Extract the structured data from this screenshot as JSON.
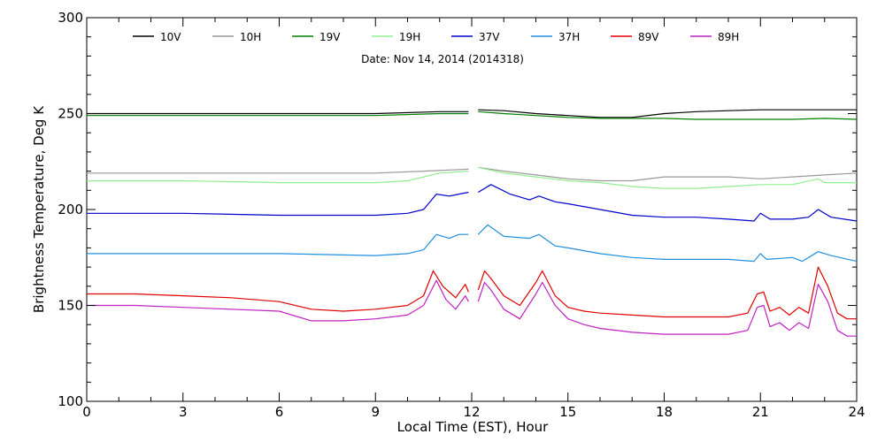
{
  "chart_data": {
    "type": "line",
    "subtitle": "Date: Nov 14, 2014 (2014318)",
    "xlabel": "Local Time (EST), Hour",
    "ylabel": "Brightness Temperature, Deg K",
    "xlim": [
      0,
      24
    ],
    "ylim": [
      100,
      300
    ],
    "xticks": [
      "0",
      "3",
      "6",
      "9",
      "12",
      "15",
      "18",
      "21",
      "24"
    ],
    "yticks": [
      "100",
      "150",
      "200",
      "250",
      "300"
    ],
    "grid": false,
    "legend_position": "top",
    "gap": [
      11.9,
      12.2
    ],
    "series": [
      {
        "name": "10V",
        "color": "#000000",
        "x": [
          0,
          3,
          6,
          9,
          11,
          11.9,
          12.2,
          13,
          14,
          15,
          16,
          17,
          18,
          19,
          20,
          21,
          22,
          23,
          24
        ],
        "y": [
          250,
          250,
          250,
          250,
          251,
          251,
          252,
          251.5,
          250,
          249,
          248,
          248,
          250,
          251,
          251.5,
          252,
          252,
          252,
          252
        ]
      },
      {
        "name": "10H",
        "color": "#999999",
        "x": [
          0,
          3,
          6,
          9,
          10.5,
          11.9,
          12.2,
          13,
          14,
          15,
          16,
          17,
          18,
          19,
          20,
          21,
          22,
          23,
          24
        ],
        "y": [
          219,
          219,
          219,
          219,
          220,
          221,
          222,
          220,
          218,
          216,
          215,
          215,
          217,
          217,
          217,
          216,
          217,
          218,
          219
        ]
      },
      {
        "name": "19V",
        "color": "#008000",
        "x": [
          0,
          3,
          6,
          9,
          11,
          11.9,
          12.2,
          13,
          14,
          15,
          16,
          17,
          18,
          19,
          20,
          21,
          22,
          23,
          24
        ],
        "y": [
          249,
          249,
          249,
          249,
          250,
          250,
          251,
          250,
          249,
          248,
          247.5,
          247.5,
          247.5,
          247,
          247,
          247,
          247,
          247.5,
          247
        ]
      },
      {
        "name": "19H",
        "color": "#90ee90",
        "x": [
          0,
          3,
          6,
          9,
          10,
          11,
          11.9,
          12.2,
          13,
          14,
          15,
          16,
          17,
          18,
          19,
          20,
          21,
          22,
          22.8,
          23,
          24
        ],
        "y": [
          215,
          215,
          214,
          214,
          215,
          219,
          220,
          222,
          219,
          217,
          215,
          214,
          212,
          211,
          211,
          212,
          213,
          213,
          216,
          214,
          214
        ]
      },
      {
        "name": "37V",
        "color": "#0000cc",
        "x": [
          0,
          3,
          6,
          9,
          10,
          10.5,
          10.9,
          11.3,
          11.6,
          11.9,
          12.2,
          12.6,
          13.2,
          13.8,
          14.1,
          14.6,
          15,
          16,
          17,
          18,
          19,
          20,
          20.8,
          21,
          21.3,
          22,
          22.5,
          22.8,
          23.2,
          24
        ],
        "y": [
          198,
          198,
          197,
          197,
          198,
          200,
          208,
          207,
          208,
          209,
          209,
          213,
          208,
          205,
          207,
          204,
          203,
          200,
          197,
          196,
          196,
          195,
          194,
          198,
          195,
          195,
          196,
          200,
          196,
          194
        ]
      },
      {
        "name": "37H",
        "color": "#1f8fe0",
        "x": [
          0,
          3,
          6,
          9,
          10,
          10.5,
          10.9,
          11.3,
          11.6,
          11.9,
          12.2,
          12.5,
          13,
          13.8,
          14.1,
          14.6,
          15,
          16,
          17,
          18,
          19,
          20,
          20.8,
          21,
          21.2,
          22,
          22.3,
          22.8,
          23.2,
          24
        ],
        "y": [
          177,
          177,
          177,
          176,
          177,
          179,
          187,
          185,
          187,
          187,
          187,
          192,
          186,
          185,
          187,
          181,
          180,
          177,
          175,
          174,
          174,
          174,
          173,
          177,
          174,
          175,
          173,
          178,
          176,
          173
        ]
      },
      {
        "name": "89V",
        "color": "#e00000",
        "x": [
          0,
          1.5,
          3,
          4.5,
          6,
          7,
          8,
          9,
          10,
          10.5,
          10.8,
          11.1,
          11.5,
          11.8,
          11.9,
          12.2,
          12.4,
          12.6,
          13,
          13.5,
          14,
          14.2,
          14.6,
          15,
          15.5,
          16,
          17,
          18,
          19,
          20,
          20.6,
          20.9,
          21.1,
          21.3,
          21.6,
          21.9,
          22.2,
          22.5,
          22.8,
          23.1,
          23.4,
          23.7,
          24
        ],
        "y": [
          156,
          156,
          155,
          154,
          152,
          148,
          147,
          148,
          150,
          155,
          168,
          160,
          154,
          161,
          157,
          158,
          168,
          164,
          155,
          150,
          162,
          168,
          155,
          149,
          147,
          146,
          145,
          144,
          144,
          144,
          146,
          156,
          157,
          147,
          149,
          145,
          149,
          146,
          170,
          160,
          146,
          143,
          143
        ]
      },
      {
        "name": "89H",
        "color": "#c020c0",
        "x": [
          0,
          1.5,
          3,
          4.5,
          6,
          7,
          8,
          9,
          10,
          10.5,
          10.9,
          11.2,
          11.5,
          11.8,
          11.9,
          12.2,
          12.4,
          12.6,
          13,
          13.5,
          14,
          14.2,
          14.6,
          15,
          15.5,
          16,
          17,
          18,
          19,
          20,
          20.6,
          20.9,
          21.1,
          21.3,
          21.6,
          21.9,
          22.2,
          22.5,
          22.8,
          23.1,
          23.4,
          23.7,
          24
        ],
        "y": [
          150,
          150,
          149,
          148,
          147,
          142,
          142,
          143,
          145,
          150,
          163,
          153,
          148,
          155,
          152,
          152,
          162,
          158,
          148,
          143,
          156,
          162,
          150,
          143,
          140,
          138,
          136,
          135,
          135,
          135,
          137,
          149,
          150,
          139,
          141,
          137,
          141,
          138,
          161,
          152,
          137,
          134,
          134
        ]
      }
    ]
  }
}
